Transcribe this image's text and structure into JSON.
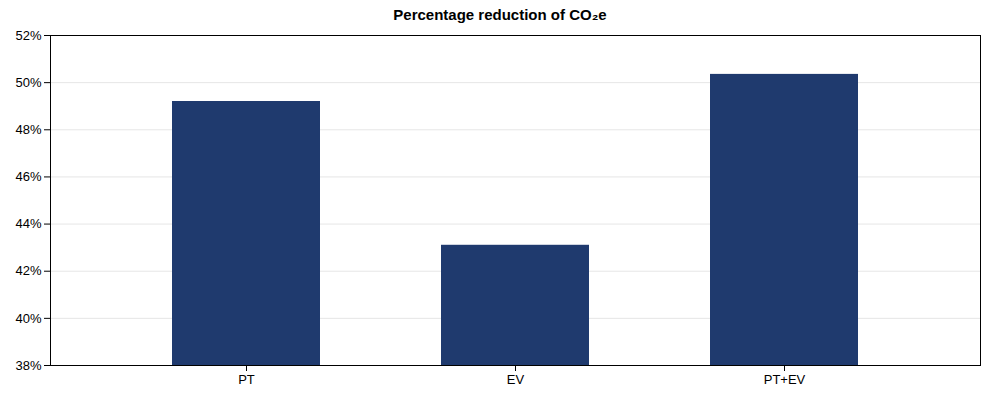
{
  "chart_data": {
    "type": "bar",
    "title": "Percentage reduction of CO₂e",
    "categories": [
      "PT",
      "EV",
      "PT+EV"
    ],
    "values": [
      49.2,
      43.1,
      50.35
    ],
    "color": "#1F3A6E",
    "ylim": [
      38,
      52
    ],
    "yticks": [
      {
        "value": 38,
        "label": "38%"
      },
      {
        "value": 40,
        "label": "40%"
      },
      {
        "value": 42,
        "label": "42%"
      },
      {
        "value": 44,
        "label": "44%"
      },
      {
        "value": 46,
        "label": "46%"
      },
      {
        "value": 48,
        "label": "48%"
      },
      {
        "value": 50,
        "label": "50%"
      },
      {
        "value": 52,
        "label": "52%"
      }
    ],
    "grid": true
  }
}
